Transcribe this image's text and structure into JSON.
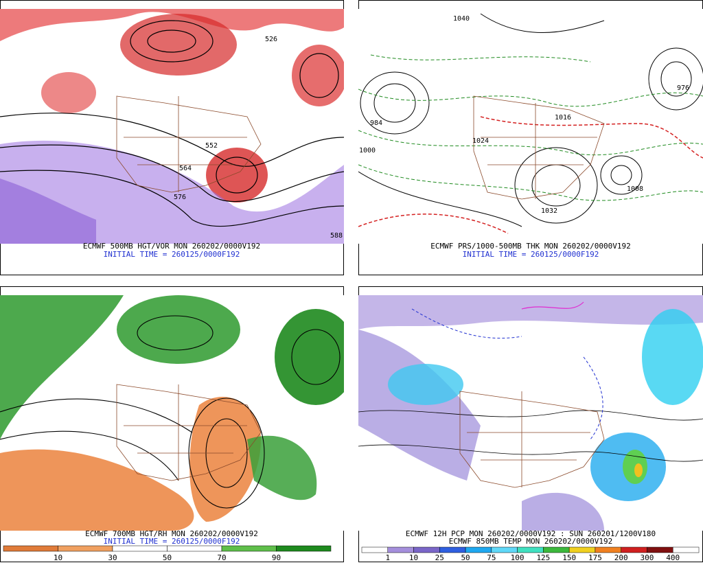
{
  "panels": [
    {
      "caption": "ECMWF 500MB HGT/VOR MON 260202/0000V192",
      "initial_time": "INITIAL TIME = 260125/0000F192",
      "labels": [
        "526",
        "552",
        "564",
        "576",
        "588"
      ]
    },
    {
      "caption": "ECMWF PRS/1000-500MB THK MON 260202/0000V192",
      "initial_time": "INITIAL TIME = 260125/0000F192",
      "labels": [
        "1040",
        "984",
        "1000",
        "1016",
        "1024",
        "1032",
        "976",
        "1008"
      ]
    },
    {
      "caption": "ECMWF 700MB HGT/RH MON 260202/0000V192",
      "initial_time": "INITIAL TIME = 260125/0000F192",
      "colorbar": [
        "10",
        "30",
        "50",
        "70",
        "90"
      ]
    },
    {
      "caption": "ECMWF 12H PCP MON 260202/0000V192 : SUN 260201/1200V180",
      "caption2": "ECMWF 850MB TEMP MON 260202/0000V192",
      "colorbar": [
        "1",
        "10",
        "25",
        "50",
        "75",
        "100",
        "125",
        "150",
        "175",
        "200",
        "300",
        "400"
      ]
    }
  ]
}
